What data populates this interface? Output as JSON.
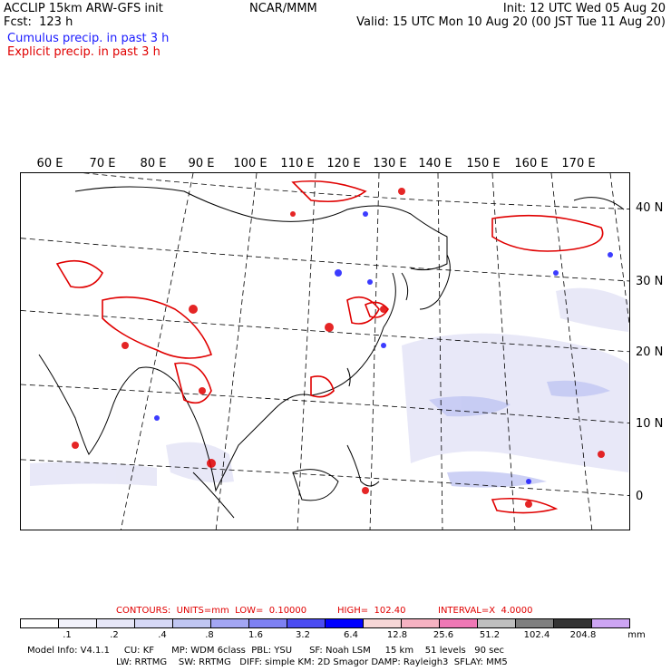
{
  "header": {
    "left_line1": "ACCLIP 15km ARW-GFS init",
    "left_line2": "Fcst:  123 h",
    "center": "NCAR/MMM",
    "right_line1": "Init: 12 UTC Wed 05 Aug 20",
    "right_line2": "Valid: 15 UTC Mon 10 Aug 20 (00 JST Tue 11 Aug 20)",
    "cumulus_label": "Cumulus precip. in past 3 h",
    "explicit_label": "Explicit precip. in past 3 h"
  },
  "map": {
    "lon_labels": [
      "60 E",
      "70 E",
      "80 E",
      "90 E",
      "100 E",
      "110 E",
      "120 E",
      "130 E",
      "140 E",
      "150 E",
      "160 E",
      "170 E"
    ],
    "lat_labels": [
      "40 N",
      "30 N",
      "20 N",
      "10 N",
      "0"
    ],
    "colors": {
      "cumulus": "#1a1aff",
      "explicit": "#e00000",
      "coast": "#000000",
      "grid": "#000000"
    }
  },
  "contours": {
    "prefix": "CONTOURS:  UNITS=mm  LOW=  0.10000",
    "high": "HIGH=  102.40",
    "interval": "INTERVAL=X  4.0000"
  },
  "legend": {
    "colors": [
      "#ffffff",
      "#f2f2fb",
      "#e6e6f7",
      "#d6d8f6",
      "#c0c6f2",
      "#a3a6f3",
      "#7e81f3",
      "#4b4cf2",
      "#0000ff",
      "#f6d6d6",
      "#f6b2c2",
      "#ef78b5",
      "#bfbfbf",
      "#7f7f7f",
      "#333333",
      "#cda5f3"
    ],
    "ticks": [
      ".1",
      ".2",
      ".4",
      ".8",
      "1.6",
      "3.2",
      "6.4",
      "12.8",
      "25.6",
      "51.2",
      "102.4",
      "204.8"
    ],
    "unit": "mm"
  },
  "footer": {
    "line1": "Model Info: V4.1.1     CU: KF      MP: WDM 6class  PBL: YSU      SF: Noah LSM     15 km    51 levels   90 sec",
    "line2": "LW: RRTMG    SW: RRTMG   DIFF: simple KM: 2D Smagor DAMP: Rayleigh3  SFLAY: MM5"
  }
}
